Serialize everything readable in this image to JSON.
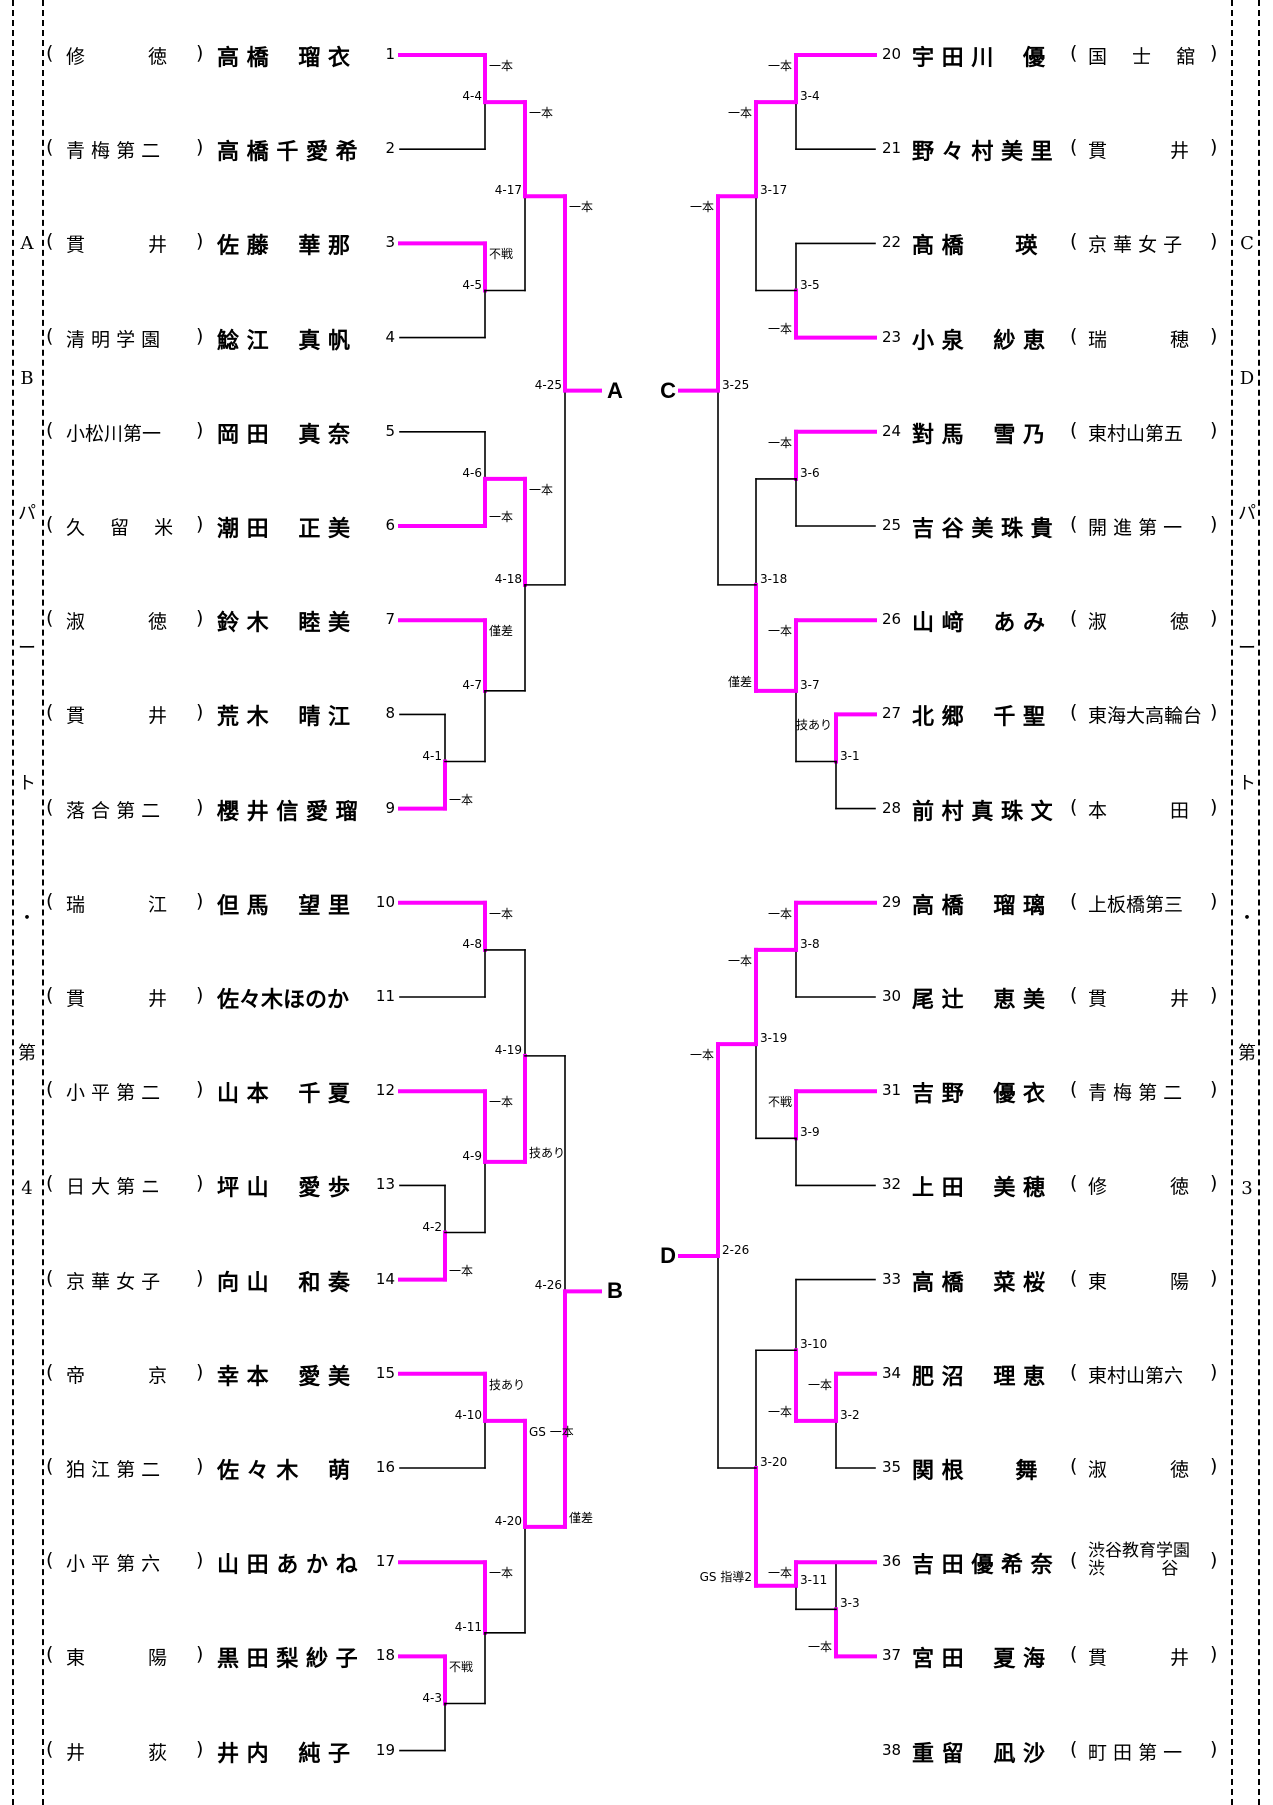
{
  "sides": {
    "left": {
      "label": [
        "A",
        "B",
        "パ",
        "ー",
        "ト",
        "・",
        "第",
        "4"
      ]
    },
    "right": {
      "label": [
        "C",
        "D",
        "パ",
        "ー",
        "ト",
        "・",
        "第",
        "3"
      ]
    }
  },
  "left_players": [
    {
      "num": "1",
      "name": "高 橋　 瑠 衣",
      "school": "修　　　 徳",
      "win": true
    },
    {
      "num": "2",
      "name": "高 橋 千 愛 希",
      "school": "青 梅 第 二",
      "win": false
    },
    {
      "num": "3",
      "name": "佐 藤　 華 那",
      "school": "貫　　　 井",
      "win": true
    },
    {
      "num": "4",
      "name": "鯰 江　 真 帆",
      "school": "清 明 学 園",
      "win": false
    },
    {
      "num": "5",
      "name": "岡 田　 真 奈",
      "school": "小松川第一",
      "win": false
    },
    {
      "num": "6",
      "name": "潮 田　 正 美",
      "school": "久　 留　 米",
      "win": true
    },
    {
      "num": "7",
      "name": "鈴 木　 睦 美",
      "school": "淑　　　 徳",
      "win": true
    },
    {
      "num": "8",
      "name": "荒 木　 晴 江",
      "school": "貫　　　 井",
      "win": false
    },
    {
      "num": "9",
      "name": "櫻 井 信 愛 瑠",
      "school": "落 合 第 二",
      "win": true
    },
    {
      "num": "10",
      "name": "但 馬　 望 里",
      "school": "瑞　　　 江",
      "win": true
    },
    {
      "num": "11",
      "name": "佐々木ほのか",
      "school": "貫　　　 井",
      "win": false
    },
    {
      "num": "12",
      "name": "山 本　 千 夏",
      "school": "小 平 第 二",
      "win": true
    },
    {
      "num": "13",
      "name": "坪 山　 愛 歩",
      "school": "日 大 第 ニ",
      "win": false
    },
    {
      "num": "14",
      "name": "向 山　 和 奏",
      "school": "京 華 女 子",
      "win": true
    },
    {
      "num": "15",
      "name": "幸 本　 愛 美",
      "school": "帝　　　 京",
      "win": true
    },
    {
      "num": "16",
      "name": "佐 々 木　 萌",
      "school": "狛 江 第 二",
      "win": false
    },
    {
      "num": "17",
      "name": "山 田 あ か ね",
      "school": "小 平 第 六",
      "win": true
    },
    {
      "num": "18",
      "name": "黒 田 梨 紗 子",
      "school": "東　　　 陽",
      "win": true
    },
    {
      "num": "19",
      "name": "井 内　 純 子",
      "school": "井　　　 荻",
      "win": false
    }
  ],
  "right_players": [
    {
      "num": "20",
      "name": "宇 田 川　 優",
      "school": "国　 士　 舘",
      "win": true
    },
    {
      "num": "21",
      "name": "野 々 村 美 里",
      "school": "貫　　　 井",
      "win": false
    },
    {
      "num": "22",
      "name": "髙 橋　　 瑛",
      "school": "京 華 女 子",
      "win": false
    },
    {
      "num": "23",
      "name": "小 泉　 紗 恵",
      "school": "瑞　　　 穂",
      "win": true
    },
    {
      "num": "24",
      "name": "對 馬　 雪 乃",
      "school": "東村山第五",
      "win": true
    },
    {
      "num": "25",
      "name": "吉 谷 美 珠 貴",
      "school": "開 進 第 一",
      "win": false
    },
    {
      "num": "26",
      "name": "山 﨑　 あ み",
      "school": "淑　　　 徳",
      "win": true
    },
    {
      "num": "27",
      "name": "北 郷　 千 聖",
      "school": "東海大高輪台",
      "win": true
    },
    {
      "num": "28",
      "name": "前 村 真 珠 文",
      "school": "本　　　 田",
      "win": false
    },
    {
      "num": "29",
      "name": "高 橋　 瑠 璃",
      "school": "上板橋第三",
      "win": true
    },
    {
      "num": "30",
      "name": "尾 辻　 恵 美",
      "school": "貫　　　 井",
      "win": false
    },
    {
      "num": "31",
      "name": "吉 野　 優 衣",
      "school": "青 梅 第 二",
      "win": true
    },
    {
      "num": "32",
      "name": "上 田　 美 穂",
      "school": "修　　　 徳",
      "win": false
    },
    {
      "num": "33",
      "name": "高 橋　 菜 桜",
      "school": "東　　　 陽",
      "win": false
    },
    {
      "num": "34",
      "name": "肥 沼　 理 恵",
      "school": "東村山第六",
      "win": true
    },
    {
      "num": "35",
      "name": "関 根　　 舞",
      "school": "淑　　　 徳",
      "win": false
    },
    {
      "num": "36",
      "name": "吉 田 優 希 奈",
      "school": "渋谷教育学園 渋　　　 谷",
      "win": true
    },
    {
      "num": "37",
      "name": "宮 田　 夏 海",
      "school": "貫　　　 井",
      "win": true
    },
    {
      "num": "38",
      "name": "重 留　 凪 沙",
      "school": "町 田 第 一",
      "win": false
    }
  ],
  "left_matches": [
    {
      "id": "4-4",
      "result": "一本"
    },
    {
      "id": "4-5",
      "result": "不戦"
    },
    {
      "id": "4-6",
      "result": "一本"
    },
    {
      "id": "4-1",
      "result": "一本"
    },
    {
      "id": "4-7",
      "result": "僅差"
    },
    {
      "id": "4-17",
      "result": "一本"
    },
    {
      "id": "4-18",
      "result": "一本"
    },
    {
      "id": "4-25",
      "result": "一本"
    },
    {
      "id": "4-8",
      "result": "一本"
    },
    {
      "id": "4-2",
      "result": "一本"
    },
    {
      "id": "4-9",
      "result": "一本"
    },
    {
      "id": "4-10",
      "result": "技あり"
    },
    {
      "id": "4-3",
      "result": "不戦"
    },
    {
      "id": "4-11",
      "result": "一本"
    },
    {
      "id": "4-19",
      "result": "技あり"
    },
    {
      "id": "4-20",
      "result": "GS 一本"
    },
    {
      "id": "4-26",
      "result": "僅差"
    }
  ],
  "right_matches": [
    {
      "id": "3-4",
      "result": "一本"
    },
    {
      "id": "3-5",
      "result": "一本"
    },
    {
      "id": "3-6",
      "result": "一本"
    },
    {
      "id": "3-1",
      "result": "技あり"
    },
    {
      "id": "3-7",
      "result": "一本"
    },
    {
      "id": "3-17",
      "result": "一本"
    },
    {
      "id": "3-18",
      "result": "僅差"
    },
    {
      "id": "3-25",
      "result": "一本"
    },
    {
      "id": "3-8",
      "result": "一本"
    },
    {
      "id": "3-9",
      "result": "不戦"
    },
    {
      "id": "3-2",
      "result": "一本"
    },
    {
      "id": "3-10",
      "result": "一本"
    },
    {
      "id": "3-3",
      "result": "一本"
    },
    {
      "id": "3-11",
      "result": "一本"
    },
    {
      "id": "3-19",
      "result": "一本"
    },
    {
      "id": "3-20",
      "result": "GS 指導2"
    },
    {
      "id": "2-26",
      "result": "一本"
    }
  ],
  "slots": {
    "A": "A",
    "B": "B",
    "C": "C",
    "D": "D"
  },
  "colors": {
    "winner": "#ff00ff",
    "line": "#000000"
  }
}
